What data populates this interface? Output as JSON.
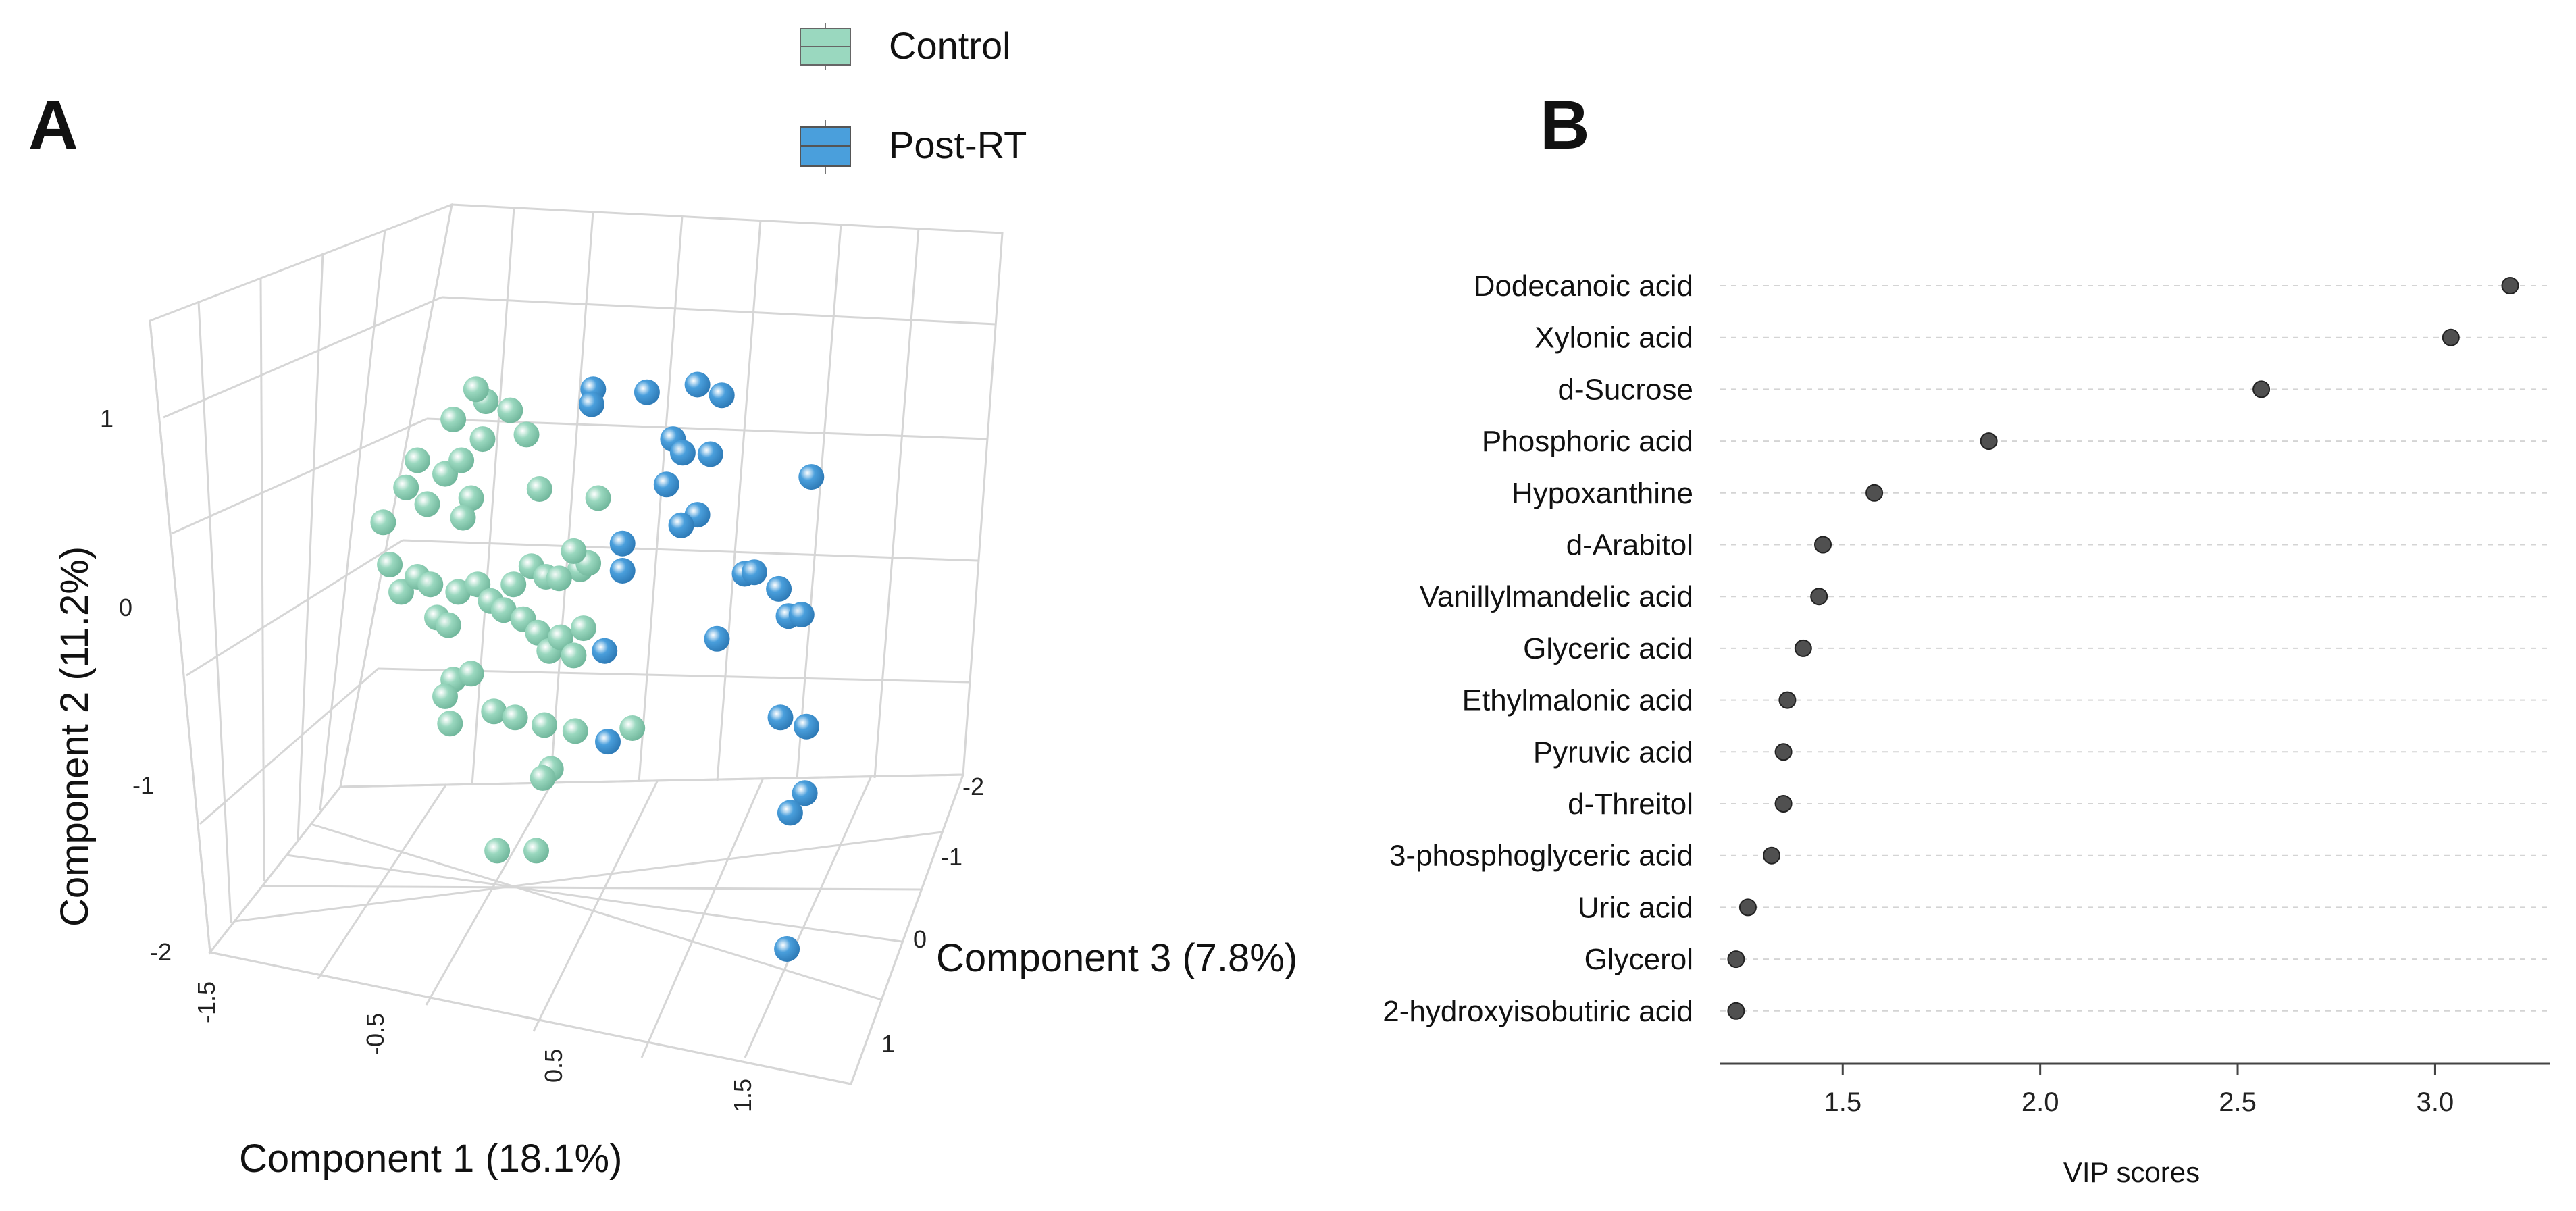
{
  "legend": {
    "items": [
      {
        "label": "Control",
        "color": "#9ad8bf"
      },
      {
        "label": "Post-RT",
        "color": "#4a9fdc"
      }
    ]
  },
  "colors": {
    "control": "#9ad8bf",
    "post_rt": "#4a9fdc",
    "grid": "#d9d9d9",
    "dot": "#505050",
    "text": "#111111"
  },
  "chart_data": [
    {
      "type": "scatter",
      "panel_label": "A",
      "title": "",
      "xlabel": "Component 1 (18.1%)",
      "ylabel": "Component 2 (11.2%)",
      "zlabel": "Component 3 (7.8%)",
      "x_ticks": [
        "-1.5",
        "-0.5",
        "0.5",
        "1.5"
      ],
      "y_ticks": [
        "1",
        "0",
        "-1",
        "-2"
      ],
      "z_ticks": [
        "-2",
        "-1",
        "0",
        "1"
      ],
      "series": [
        {
          "name": "Control",
          "points": [
            [
              -1.16,
              0.57,
              0
            ],
            [
              -1.02,
              0.8,
              0
            ],
            [
              -0.95,
              0.98,
              0
            ],
            [
              -0.89,
              0.69,
              0
            ],
            [
              -0.78,
              0.89,
              0
            ],
            [
              -0.62,
              0.73,
              0
            ],
            [
              -0.67,
              0.6,
              0
            ],
            [
              -0.68,
              0.98,
              0
            ],
            [
              -0.55,
              1.12,
              0
            ],
            [
              -0.73,
              1.25,
              0
            ],
            [
              -0.53,
              1.37,
              0
            ],
            [
              -0.59,
              1.45,
              0
            ],
            [
              -0.38,
              1.31,
              0
            ],
            [
              -0.28,
              1.15,
              0
            ],
            [
              -0.2,
              0.79,
              0
            ],
            [
              -1.12,
              0.29,
              0
            ],
            [
              -1.05,
              0.11,
              0
            ],
            [
              -0.95,
              0.21,
              0
            ],
            [
              -0.87,
              0.16,
              0
            ],
            [
              -0.83,
              -0.06,
              0
            ],
            [
              -0.76,
              -0.11,
              0
            ],
            [
              -0.7,
              0.11,
              0
            ],
            [
              -0.58,
              0.16,
              0
            ],
            [
              -0.5,
              0.05,
              0
            ],
            [
              -0.42,
              -0.01,
              0
            ],
            [
              -0.36,
              0.16,
              0
            ],
            [
              -0.3,
              -0.07,
              0
            ],
            [
              -0.25,
              0.28,
              0
            ],
            [
              -0.16,
              0.21,
              0
            ],
            [
              -0.21,
              -0.16,
              0
            ],
            [
              -0.14,
              -0.28,
              0
            ],
            [
              -0.07,
              -0.19,
              0
            ],
            [
              0.05,
              0.26,
              0
            ],
            [
              0.1,
              0.3,
              0
            ],
            [
              0.07,
              -0.13,
              0
            ],
            [
              -0.08,
              0.2,
              0
            ],
            [
              0.01,
              0.38,
              0
            ],
            [
              -0.73,
              -0.47,
              0
            ],
            [
              -0.75,
              -0.76,
              0
            ],
            [
              -0.78,
              -0.58,
              0
            ],
            [
              -0.62,
              -0.43,
              0
            ],
            [
              -0.48,
              -0.68,
              0
            ],
            [
              -0.35,
              -0.72,
              0
            ],
            [
              -0.17,
              -0.77,
              0
            ],
            [
              0.02,
              -0.81,
              0
            ],
            [
              0.01,
              -0.31,
              0
            ],
            [
              -0.13,
              -1.06,
              0
            ],
            [
              -0.18,
              -1.12,
              0
            ],
            [
              -0.46,
              -1.6,
              0
            ],
            [
              -0.22,
              -1.6,
              0
            ],
            [
              0.37,
              -0.79,
              0
            ],
            [
              0.16,
              0.73,
              0
            ]
          ]
        },
        {
          "name": "Post-RT",
          "points": [
            [
              0.13,
              1.45,
              0
            ],
            [
              0.12,
              1.35,
              0
            ],
            [
              0.46,
              1.43,
              0
            ],
            [
              0.77,
              1.48,
              0
            ],
            [
              0.92,
              1.41,
              0
            ],
            [
              0.62,
              1.12,
              0
            ],
            [
              0.68,
              1.03,
              0
            ],
            [
              0.85,
              1.02,
              0
            ],
            [
              0.58,
              0.82,
              0
            ],
            [
              0.77,
              0.62,
              0
            ],
            [
              0.67,
              0.55,
              0
            ],
            [
              1.06,
              0.23,
              0
            ],
            [
              1.12,
              0.24,
              0
            ],
            [
              1.27,
              0.13,
              0
            ],
            [
              1.33,
              -0.05,
              0
            ],
            [
              1.41,
              -0.04,
              0
            ],
            [
              0.89,
              -0.2,
              0
            ],
            [
              0.31,
              0.43,
              0
            ],
            [
              0.31,
              0.25,
              0
            ],
            [
              1.47,
              0.87,
              0
            ],
            [
              1.28,
              -0.72,
              0
            ],
            [
              1.44,
              -0.78,
              0
            ],
            [
              1.43,
              -1.22,
              0
            ],
            [
              1.34,
              -1.35,
              0
            ],
            [
              1.32,
              -2.25,
              0
            ],
            [
              0.2,
              -0.28,
              0
            ],
            [
              0.22,
              -0.88,
              0
            ]
          ]
        }
      ]
    },
    {
      "type": "scatter",
      "panel_label": "B",
      "title": "",
      "xlabel": "VIP scores",
      "ylabel": "",
      "xlim": [
        1.19,
        3.29
      ],
      "x_ticks": [
        1.5,
        2.0,
        2.5,
        3.0
      ],
      "x_tick_labels": [
        "1.5",
        "2.0",
        "2.5",
        "3.0"
      ],
      "categories": [
        "Dodecanoic acid",
        "Xylonic acid",
        "d-Sucrose",
        "Phosphoric acid",
        "Hypoxanthine",
        "d-Arabitol",
        "Vanillylmandelic acid",
        "Glyceric acid",
        "Ethylmalonic acid",
        "Pyruvic acid",
        "d-Threitol",
        "3-phosphoglyceric acid",
        "Uric acid",
        "Glycerol",
        "2-hydroxyisobutiric acid"
      ],
      "values": [
        3.19,
        3.04,
        2.56,
        1.87,
        1.58,
        1.45,
        1.44,
        1.4,
        1.36,
        1.35,
        1.35,
        1.32,
        1.26,
        1.23,
        1.23
      ]
    }
  ]
}
